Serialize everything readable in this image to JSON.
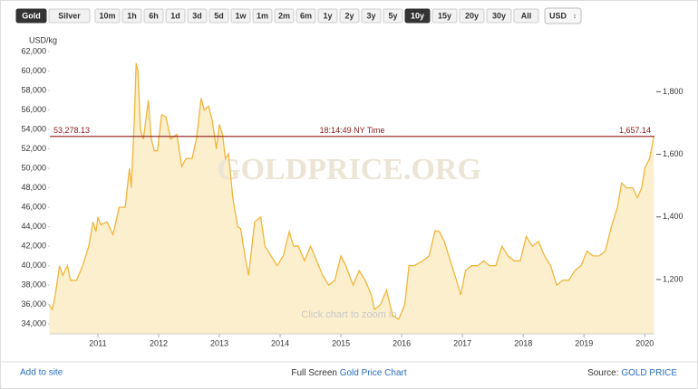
{
  "toolbar": {
    "metals": [
      "Gold",
      "Silver"
    ],
    "active_metal": 0,
    "ranges": [
      "10m",
      "1h",
      "6h",
      "1d",
      "3d",
      "5d",
      "1w",
      "1m",
      "2m",
      "6m",
      "1y",
      "2y",
      "3y",
      "5y",
      "10y",
      "15y",
      "20y",
      "30y",
      "All"
    ],
    "active_range": 14,
    "currency": "USD"
  },
  "chart_data": {
    "type": "area",
    "y_axis_label": "USD/kg",
    "watermark": "GOLDPRICE.ORG",
    "hint": "Click chart to zoom in",
    "current_price": {
      "value": 53278.13,
      "label": "53,278.13"
    },
    "current_price_oz": {
      "value": 1657.14,
      "label": "1,657.14"
    },
    "time_label": "18:14:49 NY Time",
    "marker_color": "#8b1a1a",
    "series": [
      {
        "name": "Gold",
        "color": "#f0b63c",
        "fill": "#fcefcd",
        "x": [
          2010.2,
          2010.25,
          2010.3,
          2010.37,
          2010.42,
          2010.5,
          2010.55,
          2010.65,
          2010.75,
          2010.85,
          2010.92,
          2010.97,
          2011.0,
          2011.05,
          2011.15,
          2011.25,
          2011.35,
          2011.45,
          2011.52,
          2011.55,
          2011.6,
          2011.63,
          2011.66,
          2011.7,
          2011.75,
          2011.83,
          2011.88,
          2011.93,
          2011.98,
          2012.05,
          2012.12,
          2012.2,
          2012.3,
          2012.38,
          2012.45,
          2012.55,
          2012.62,
          2012.7,
          2012.75,
          2012.82,
          2012.88,
          2012.95,
          2013.0,
          2013.05,
          2013.1,
          2013.15,
          2013.22,
          2013.3,
          2013.35,
          2013.42,
          2013.48,
          2013.58,
          2013.68,
          2013.75,
          2013.85,
          2013.95,
          2014.05,
          2014.15,
          2014.22,
          2014.3,
          2014.4,
          2014.5,
          2014.6,
          2014.7,
          2014.8,
          2014.9,
          2015.0,
          2015.08,
          2015.2,
          2015.3,
          2015.4,
          2015.5,
          2015.55,
          2015.65,
          2015.75,
          2015.85,
          2015.95,
          2016.05,
          2016.12,
          2016.2,
          2016.35,
          2016.45,
          2016.55,
          2016.62,
          2016.7,
          2016.8,
          2016.9,
          2016.97,
          2017.05,
          2017.15,
          2017.25,
          2017.35,
          2017.45,
          2017.55,
          2017.65,
          2017.75,
          2017.85,
          2017.95,
          2018.05,
          2018.15,
          2018.25,
          2018.35,
          2018.45,
          2018.55,
          2018.65,
          2018.75,
          2018.85,
          2018.95,
          2019.05,
          2019.15,
          2019.25,
          2019.35,
          2019.45,
          2019.55,
          2019.62,
          2019.7,
          2019.8,
          2019.88,
          2019.95,
          2020.0,
          2020.08,
          2020.15
        ],
        "values": [
          36000,
          35500,
          37000,
          40000,
          39000,
          40000,
          38500,
          38500,
          40000,
          42000,
          44500,
          43500,
          45000,
          44200,
          44500,
          43200,
          46000,
          46000,
          50000,
          48000,
          55000,
          60800,
          60000,
          54000,
          53000,
          57000,
          53000,
          51800,
          51800,
          55500,
          55300,
          53000,
          53500,
          50200,
          51000,
          51000,
          53000,
          57200,
          56000,
          56400,
          55000,
          52000,
          54500,
          53500,
          51000,
          51500,
          47000,
          44000,
          43800,
          41000,
          39000,
          44500,
          45000,
          42000,
          41000,
          40000,
          41000,
          43500,
          42000,
          42000,
          40500,
          42000,
          40500,
          39000,
          38000,
          38500,
          41000,
          40000,
          38000,
          39500,
          38500,
          37000,
          35500,
          36000,
          37500,
          34900,
          34500,
          36000,
          40000,
          40000,
          40500,
          41000,
          43600,
          43500,
          42500,
          40500,
          38500,
          37000,
          39500,
          40000,
          40000,
          40500,
          40000,
          40000,
          42000,
          41000,
          40500,
          40500,
          43000,
          42000,
          42500,
          41000,
          40000,
          38000,
          38500,
          38500,
          39500,
          40000,
          41500,
          41000,
          41000,
          41500,
          44000,
          46000,
          48500,
          48000,
          48000,
          47000,
          48000,
          50000,
          51000,
          53278.13
        ]
      }
    ],
    "xlim": [
      2010.21,
      2020.16
    ],
    "xticks": [
      2011,
      2012,
      2013,
      2014,
      2015,
      2016,
      2017,
      2018,
      2019,
      2020
    ],
    "ylim": [
      33000,
      62000
    ],
    "yticks": [
      {
        "value": 34000,
        "label": "34,000"
      },
      {
        "value": 36000,
        "label": "36,000"
      },
      {
        "value": 38000,
        "label": "38,000"
      },
      {
        "value": 40000,
        "label": "40,000"
      },
      {
        "value": 42000,
        "label": "42,000"
      },
      {
        "value": 44000,
        "label": "44,000"
      },
      {
        "value": 46000,
        "label": "46,000"
      },
      {
        "value": 48000,
        "label": "48,000"
      },
      {
        "value": 50000,
        "label": "50,000"
      },
      {
        "value": 52000,
        "label": "52,000"
      },
      {
        "value": 54000,
        "label": "54,000"
      },
      {
        "value": 56000,
        "label": "56,000"
      },
      {
        "value": 58000,
        "label": "58,000"
      },
      {
        "value": 60000,
        "label": "60,000"
      },
      {
        "value": 62000,
        "label": "62,000"
      }
    ],
    "y2lim": [
      1026.4,
      1928.4
    ],
    "y2ticks": [
      {
        "value": 1200,
        "label": "1,200"
      },
      {
        "value": 1400,
        "label": "1,400"
      },
      {
        "value": 1600,
        "label": "1,600"
      },
      {
        "value": 1800,
        "label": "1,800"
      }
    ]
  },
  "footer": {
    "add": "Add to site",
    "fullscreen": "Full Screen",
    "chart_link": "Gold Price Chart",
    "source": "Source:",
    "source_link": "GOLD PRICE"
  }
}
